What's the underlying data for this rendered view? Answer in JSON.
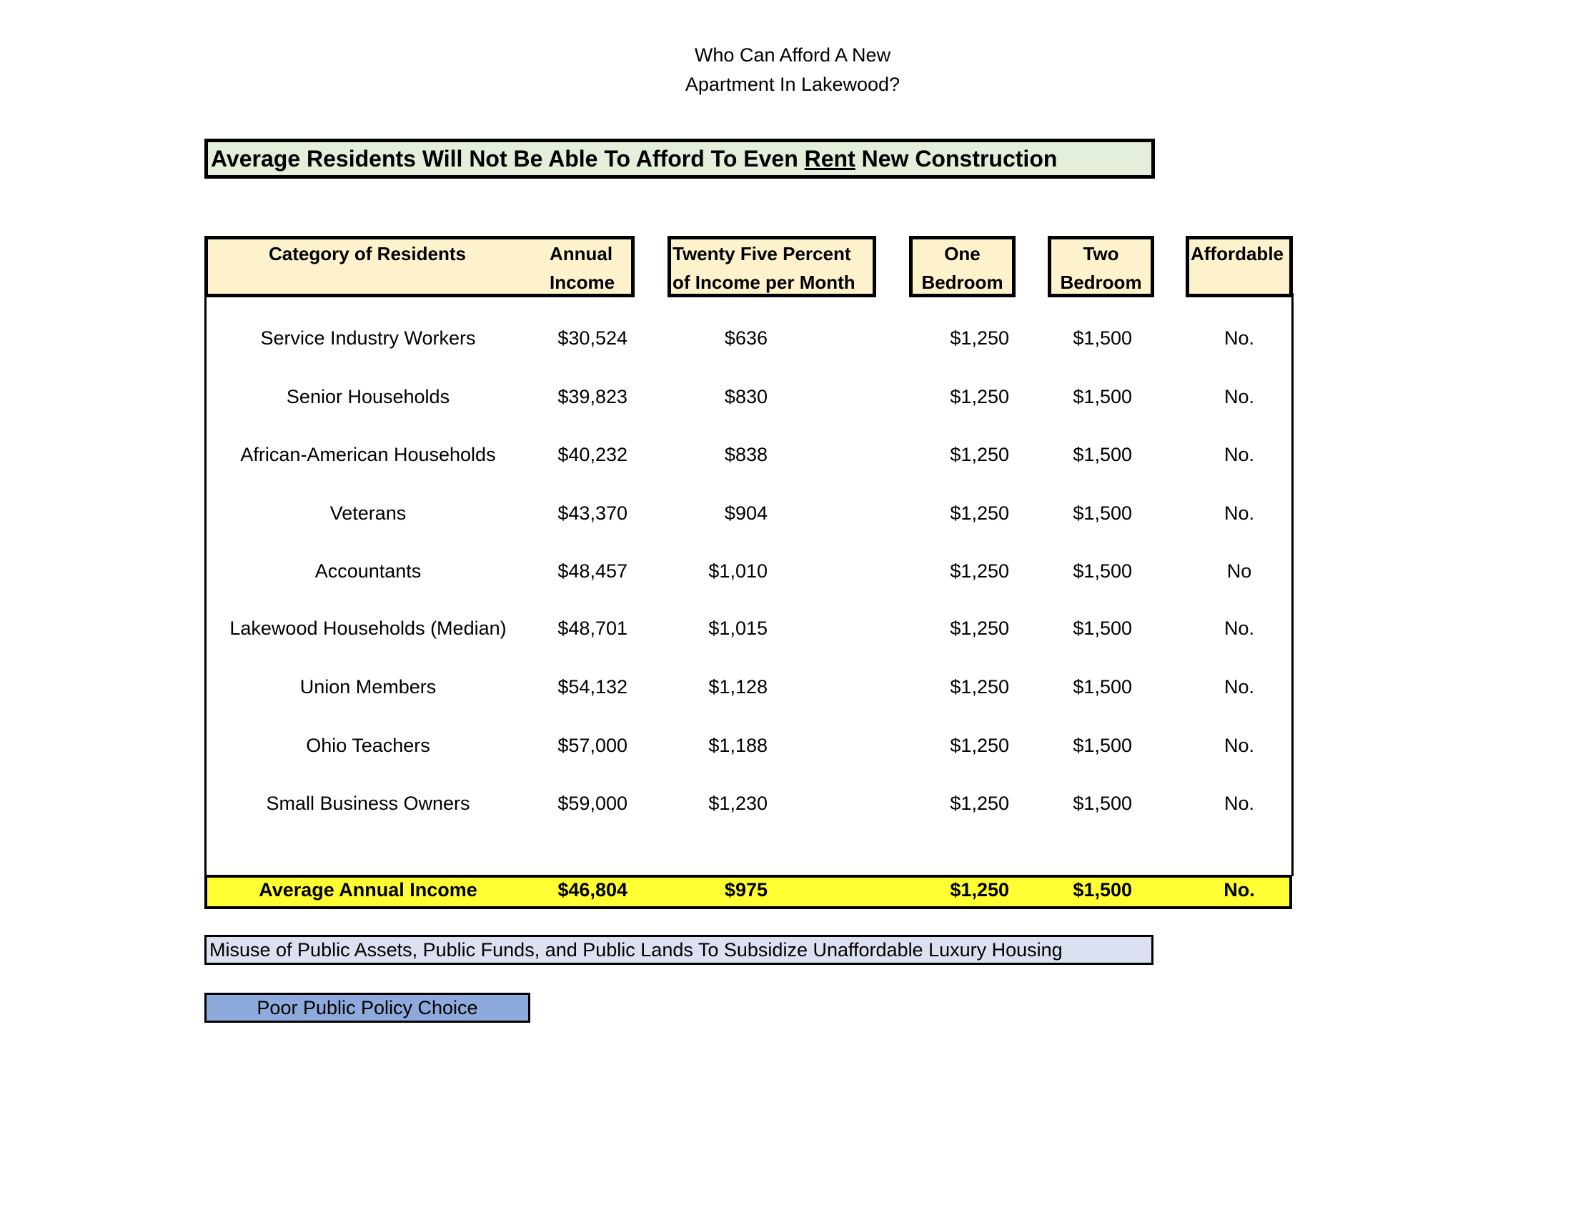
{
  "title": {
    "line1": "Who Can Afford A New",
    "line2": "Apartment In Lakewood?"
  },
  "banner": {
    "before": "Average Residents Will Not Be Able To Afford To Even ",
    "underlined": "Rent",
    "after": " New Construction"
  },
  "headers": {
    "category": "Category of Residents",
    "annual_1": "Annual",
    "annual_2": "Income",
    "pct_1": "Twenty Five Percent",
    "pct_2": "of Income per Month",
    "one_1": "One",
    "one_2": "Bedroom",
    "two_1": "Two",
    "two_2": "Bedroom",
    "affordable": "Affordable"
  },
  "rows": [
    [
      "Service Industry Workers",
      "$30,524",
      "$636",
      "$1,250",
      "$1,500",
      "No."
    ],
    [
      "Senior Households",
      "$39,823",
      "$830",
      "$1,250",
      "$1,500",
      "No."
    ],
    [
      "African-American Households",
      "$40,232",
      "$838",
      "$1,250",
      "$1,500",
      "No."
    ],
    [
      "Veterans",
      "$43,370",
      "$904",
      "$1,250",
      "$1,500",
      "No."
    ],
    [
      "Accountants",
      "$48,457",
      "$1,010",
      "$1,250",
      "$1,500",
      "No"
    ],
    [
      "Lakewood Households (Median)",
      "$48,701",
      "$1,015",
      "$1,250",
      "$1,500",
      "No."
    ],
    [
      "Union Members",
      "$54,132",
      "$1,128",
      "$1,250",
      "$1,500",
      "No."
    ],
    [
      "Ohio Teachers",
      "$57,000",
      "$1,188",
      "$1,250",
      "$1,500",
      "No."
    ],
    [
      "Small Business Owners",
      "$59,000",
      "$1,230",
      "$1,250",
      "$1,500",
      "No."
    ]
  ],
  "total": [
    "Average Annual Income",
    "$46,804",
    "$975",
    "$1,250",
    "$1,500",
    "No."
  ],
  "notes": {
    "misuse": "Misuse of Public Assets, Public Funds, and Public Lands To Subsidize Unaffordable Luxury Housing",
    "poor": "Poor Public Policy Choice"
  },
  "colors": {
    "banner": "#e3efda",
    "header": "#fdf2cc",
    "total": "#ffff33",
    "misuse": "#dbe1f1",
    "poor": "#8ea9db"
  }
}
